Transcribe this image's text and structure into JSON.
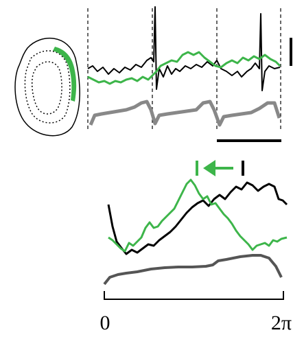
{
  "phase_axis": {
    "start_label": "0",
    "end_label": "2π"
  }
}
